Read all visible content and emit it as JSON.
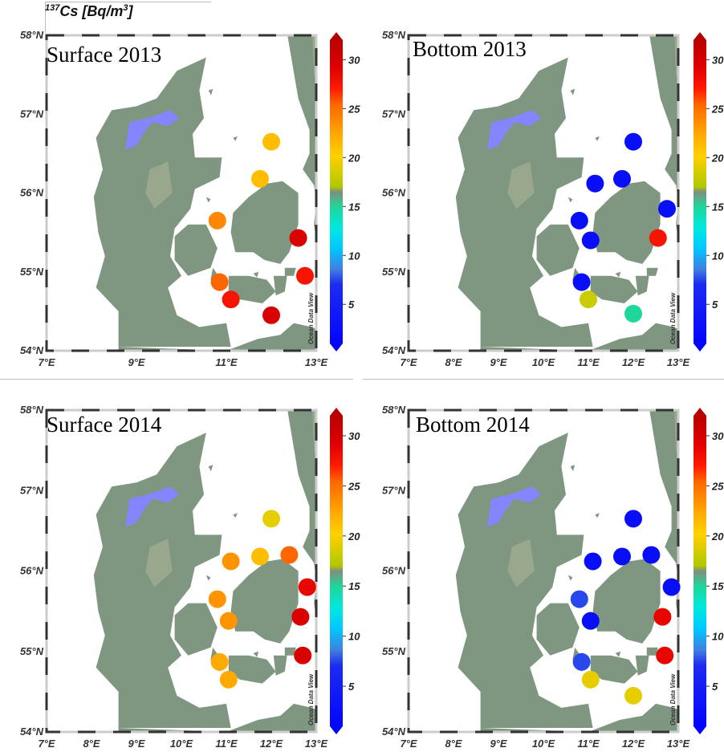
{
  "header": {
    "pre": "137",
    "main": "Cs [Bq/m",
    "exp": "3",
    "close": "]"
  },
  "colors": {
    "land": "#7f9681",
    "land_light": "#99a88d",
    "lake": "#8585ff",
    "ocean": "#ffffff"
  },
  "colorbar": {
    "labels": [
      "5",
      "10",
      "15",
      "20",
      "25",
      "30"
    ],
    "ticks": [
      5,
      10,
      15,
      20,
      25,
      30
    ],
    "range": [
      1,
      32
    ],
    "stops": [
      {
        "v": 1,
        "c": "#0000ff"
      },
      {
        "v": 7.5,
        "c": "#1c2cf0"
      },
      {
        "v": 9,
        "c": "#3f7fe0"
      },
      {
        "v": 11,
        "c": "#00c8ff"
      },
      {
        "v": 13,
        "c": "#00e8e0"
      },
      {
        "v": 15,
        "c": "#1ed79a"
      },
      {
        "v": 16.5,
        "c": "#7f8f7f"
      },
      {
        "v": 17,
        "c": "#b0c800"
      },
      {
        "v": 20,
        "c": "#ffd000"
      },
      {
        "v": 22,
        "c": "#ffaa00"
      },
      {
        "v": 25,
        "c": "#ff6600"
      },
      {
        "v": 26.5,
        "c": "#ff1a00"
      },
      {
        "v": 28.5,
        "c": "#e00000"
      },
      {
        "v": 32,
        "c": "#b00000"
      }
    ],
    "watermark": "Ocean Data View"
  },
  "panels": [
    {
      "title": "Surface 2013",
      "x_ticks": [
        "7°E",
        "9°E",
        "11°E",
        "13°E"
      ],
      "y_ticks": [
        "54°N",
        "55°N",
        "56°N",
        "57°N",
        "58°N"
      ],
      "stations": [
        {
          "lon": 12.0,
          "lat": 56.65,
          "v": 21
        },
        {
          "lon": 11.75,
          "lat": 56.18,
          "v": 21
        },
        {
          "lon": 10.8,
          "lat": 55.65,
          "v": 23.5
        },
        {
          "lon": 12.6,
          "lat": 55.43,
          "v": 29
        },
        {
          "lon": 12.75,
          "lat": 54.95,
          "v": 27
        },
        {
          "lon": 10.85,
          "lat": 54.87,
          "v": 25
        },
        {
          "lon": 11.1,
          "lat": 54.65,
          "v": 27
        },
        {
          "lon": 12.0,
          "lat": 54.45,
          "v": 29
        }
      ]
    },
    {
      "title": "Bottom 2013",
      "x_ticks": [
        "7°E",
        "8°E",
        "9°E",
        "10°E",
        "11°E",
        "12°E",
        "13°E"
      ],
      "y_ticks": [
        "54°N",
        "55°N",
        "56°N",
        "57°N",
        "58°N"
      ],
      "stations": [
        {
          "lon": 12.0,
          "lat": 56.65,
          "v": 3
        },
        {
          "lon": 11.15,
          "lat": 56.12,
          "v": 3
        },
        {
          "lon": 11.75,
          "lat": 56.18,
          "v": 3
        },
        {
          "lon": 12.75,
          "lat": 55.8,
          "v": 3
        },
        {
          "lon": 10.8,
          "lat": 55.65,
          "v": 3
        },
        {
          "lon": 11.05,
          "lat": 55.4,
          "v": 3
        },
        {
          "lon": 12.55,
          "lat": 55.43,
          "v": 27
        },
        {
          "lon": 10.85,
          "lat": 54.87,
          "v": 3
        },
        {
          "lon": 11.0,
          "lat": 54.65,
          "v": 18
        },
        {
          "lon": 12.0,
          "lat": 54.47,
          "v": 15
        }
      ]
    },
    {
      "title": "Surface 2014",
      "x_ticks": [
        "7°E",
        "8°E",
        "9°E",
        "10°E",
        "11°E",
        "12°E",
        "13°E"
      ],
      "y_ticks": [
        "54°N",
        "55°N",
        "56°N",
        "57°N",
        "58°N"
      ],
      "stations": [
        {
          "lon": 12.0,
          "lat": 56.65,
          "v": 19
        },
        {
          "lon": 11.1,
          "lat": 56.12,
          "v": 23
        },
        {
          "lon": 11.75,
          "lat": 56.18,
          "v": 21
        },
        {
          "lon": 12.4,
          "lat": 56.2,
          "v": 25
        },
        {
          "lon": 12.8,
          "lat": 55.8,
          "v": 28
        },
        {
          "lon": 10.8,
          "lat": 55.65,
          "v": 23
        },
        {
          "lon": 11.05,
          "lat": 55.38,
          "v": 23
        },
        {
          "lon": 12.65,
          "lat": 55.43,
          "v": 29
        },
        {
          "lon": 10.85,
          "lat": 54.87,
          "v": 22
        },
        {
          "lon": 12.7,
          "lat": 54.95,
          "v": 29
        },
        {
          "lon": 11.05,
          "lat": 54.65,
          "v": 22
        }
      ]
    },
    {
      "title": "Bottom 2014",
      "x_ticks": [
        "7°E",
        "8°E",
        "9°E",
        "10°E",
        "11°E",
        "12°E",
        "13°E"
      ],
      "y_ticks": [
        "54°N",
        "55°N",
        "56°N",
        "57°N",
        "58°N"
      ],
      "stations": [
        {
          "lon": 12.0,
          "lat": 56.65,
          "v": 3
        },
        {
          "lon": 11.1,
          "lat": 56.12,
          "v": 3
        },
        {
          "lon": 11.75,
          "lat": 56.18,
          "v": 3
        },
        {
          "lon": 12.4,
          "lat": 56.2,
          "v": 3
        },
        {
          "lon": 12.85,
          "lat": 55.8,
          "v": 3
        },
        {
          "lon": 10.8,
          "lat": 55.65,
          "v": 8
        },
        {
          "lon": 11.05,
          "lat": 55.38,
          "v": 3
        },
        {
          "lon": 12.65,
          "lat": 55.43,
          "v": 28
        },
        {
          "lon": 10.85,
          "lat": 54.87,
          "v": 8
        },
        {
          "lon": 12.7,
          "lat": 54.95,
          "v": 28
        },
        {
          "lon": 11.05,
          "lat": 54.65,
          "v": 19
        },
        {
          "lon": 12.0,
          "lat": 54.45,
          "v": 19
        }
      ]
    }
  ]
}
